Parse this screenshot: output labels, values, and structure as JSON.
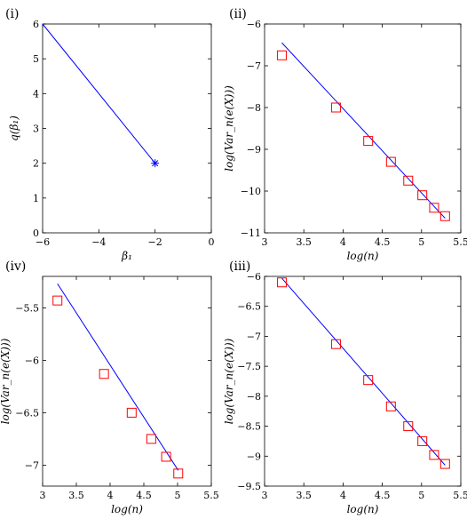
{
  "chart_data": [
    {
      "panel_label": "(i)",
      "type": "line",
      "xlabel": "β₁",
      "ylabel": "q(β₁)",
      "xlim": [
        -6,
        0
      ],
      "ylim": [
        0,
        6
      ],
      "xticks": [
        -6,
        -4,
        -2,
        0
      ],
      "yticks": [
        0,
        1,
        2,
        3,
        4,
        5,
        6
      ],
      "xtick_labels": [
        "−6",
        "−4",
        "−2",
        "0"
      ],
      "ytick_labels": [
        "0",
        "1",
        "2",
        "3",
        "4",
        "5",
        "6"
      ],
      "line": {
        "x": [
          -6,
          -2
        ],
        "y": [
          6,
          2
        ],
        "color": "#0000ff"
      },
      "markers": {
        "x": [
          -2
        ],
        "y": [
          2
        ],
        "symbol": "star",
        "color": "#0000ff"
      }
    },
    {
      "panel_label": "(ii)",
      "type": "scatter",
      "xlabel": "log(n)",
      "ylabel": "log(Var_n(e(X)))",
      "xlim": [
        3,
        5.5
      ],
      "ylim": [
        -11,
        -6
      ],
      "xticks": [
        3,
        3.5,
        4,
        4.5,
        5,
        5.5
      ],
      "yticks": [
        -11,
        -10,
        -9,
        -8,
        -7,
        -6
      ],
      "xtick_labels": [
        "3",
        "3.5",
        "4",
        "4.5",
        "5",
        "5.5"
      ],
      "ytick_labels": [
        "−11",
        "−10",
        "−9",
        "−8",
        "−7",
        "−6"
      ],
      "line": {
        "x": [
          3.22,
          5.3
        ],
        "y": [
          -6.45,
          -10.65
        ],
        "color": "#0000ff"
      },
      "markers": {
        "x": [
          3.22,
          3.91,
          4.32,
          4.61,
          4.83,
          5.01,
          5.16,
          5.3
        ],
        "y": [
          -6.75,
          -8.0,
          -8.8,
          -9.3,
          -9.75,
          -10.1,
          -10.4,
          -10.6
        ],
        "symbol": "square",
        "color": "#ff0000"
      }
    },
    {
      "panel_label": "(iv)",
      "type": "scatter",
      "xlabel": "log(n)",
      "ylabel": "log(Var_n(e(X)))",
      "xlim": [
        3,
        5.5
      ],
      "ylim": [
        -7.2,
        -5.2
      ],
      "xticks": [
        3,
        3.5,
        4,
        4.5,
        5,
        5.5
      ],
      "yticks": [
        -7,
        -6.5,
        -6,
        -5.5
      ],
      "xtick_labels": [
        "3",
        "3.5",
        "4",
        "4.5",
        "5",
        "5.5"
      ],
      "ytick_labels": [
        "−7",
        "−6.5",
        "−6",
        "−5.5"
      ],
      "line": {
        "x": [
          3.22,
          5.01
        ],
        "y": [
          -5.27,
          -7.05
        ],
        "color": "#0000ff"
      },
      "markers": {
        "x": [
          3.22,
          3.91,
          4.32,
          4.61,
          4.83,
          5.01
        ],
        "y": [
          -5.43,
          -6.13,
          -6.5,
          -6.75,
          -6.92,
          -7.08
        ],
        "symbol": "square",
        "color": "#ff0000"
      }
    },
    {
      "panel_label": "(iii)",
      "type": "scatter",
      "xlabel": "log(n)",
      "ylabel": "log(Var_n(e(X)))",
      "xlim": [
        3,
        5.5
      ],
      "ylim": [
        -9.5,
        -6
      ],
      "xticks": [
        3,
        3.5,
        4,
        4.5,
        5,
        5.5
      ],
      "yticks": [
        -9.5,
        -9,
        -8.5,
        -8,
        -7.5,
        -7,
        -6.5,
        -6
      ],
      "xtick_labels": [
        "3",
        "3.5",
        "4",
        "4.5",
        "5",
        "5.5"
      ],
      "ytick_labels": [
        "−9.5",
        "−9",
        "−8.5",
        "−8",
        "−7.5",
        "−7",
        "−6.5",
        "−6"
      ],
      "line": {
        "x": [
          3.22,
          5.3
        ],
        "y": [
          -6.03,
          -9.15
        ],
        "color": "#0000ff"
      },
      "markers": {
        "x": [
          3.22,
          3.91,
          4.32,
          4.61,
          4.83,
          5.01,
          5.16,
          5.3
        ],
        "y": [
          -6.1,
          -7.13,
          -7.73,
          -8.17,
          -8.5,
          -8.75,
          -8.98,
          -9.13
        ],
        "symbol": "square",
        "color": "#ff0000"
      }
    }
  ]
}
